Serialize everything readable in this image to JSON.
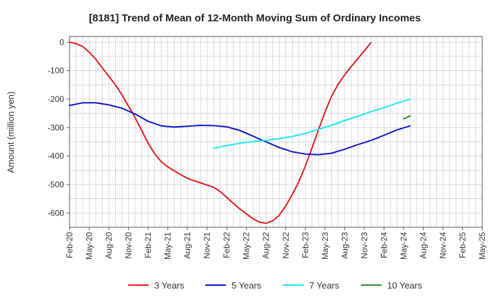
{
  "chart_data": {
    "type": "line",
    "title": "[8181]  Trend of Mean of 12-Month Moving Sum of Ordinary Incomes",
    "xlabel": "",
    "ylabel": "Amount (million yen)",
    "ylim": [
      -650,
      20
    ],
    "yticks": [
      0,
      -100,
      -200,
      -300,
      -400,
      -500,
      -600
    ],
    "ytick_labels": [
      "0",
      "-100",
      "-200",
      "-300",
      "-400",
      "-500",
      "-600"
    ],
    "x_tick_labels": [
      "Feb-20",
      "May-20",
      "Aug-20",
      "Nov-20",
      "Feb-21",
      "May-21",
      "Aug-21",
      "Nov-21",
      "Feb-22",
      "May-22",
      "Aug-22",
      "Nov-22",
      "Feb-23",
      "May-23",
      "Aug-23",
      "Nov-23",
      "Feb-24",
      "May-24",
      "Aug-24",
      "Nov-24",
      "Feb-25",
      "May-25"
    ],
    "grid": true,
    "legend_position": "bottom",
    "series": [
      {
        "name": "3 Years",
        "color": "#e31a1c",
        "points": [
          [
            0,
            0
          ],
          [
            1,
            -5
          ],
          [
            2,
            -15
          ],
          [
            3,
            -35
          ],
          [
            4,
            -60
          ],
          [
            5,
            -90
          ],
          [
            6,
            -120
          ],
          [
            7,
            -150
          ],
          [
            8,
            -185
          ],
          [
            9,
            -225
          ],
          [
            10,
            -265
          ],
          [
            11,
            -310
          ],
          [
            12,
            -355
          ],
          [
            13,
            -392
          ],
          [
            14,
            -420
          ],
          [
            15,
            -438
          ],
          [
            16,
            -452
          ],
          [
            17,
            -466
          ],
          [
            18,
            -478
          ],
          [
            19,
            -487
          ],
          [
            20,
            -494
          ],
          [
            21,
            -502
          ],
          [
            22,
            -510
          ],
          [
            23,
            -525
          ],
          [
            24,
            -545
          ],
          [
            25,
            -566
          ],
          [
            26,
            -586
          ],
          [
            27,
            -603
          ],
          [
            28,
            -620
          ],
          [
            29,
            -632
          ],
          [
            30,
            -636
          ],
          [
            31,
            -628
          ],
          [
            32,
            -608
          ],
          [
            33,
            -575
          ],
          [
            34,
            -535
          ],
          [
            35,
            -490
          ],
          [
            36,
            -435
          ],
          [
            37,
            -372
          ],
          [
            38,
            -308
          ],
          [
            39,
            -245
          ],
          [
            40,
            -190
          ],
          [
            41,
            -148
          ],
          [
            42,
            -115
          ],
          [
            43,
            -86
          ],
          [
            44,
            -58
          ],
          [
            45,
            -30
          ],
          [
            46,
            -2
          ]
        ]
      },
      {
        "name": "5 Years",
        "color": "#0a17c9",
        "points": [
          [
            0,
            -222
          ],
          [
            2,
            -213
          ],
          [
            4,
            -213
          ],
          [
            6,
            -220
          ],
          [
            8,
            -232
          ],
          [
            10,
            -252
          ],
          [
            12,
            -278
          ],
          [
            14,
            -294
          ],
          [
            16,
            -298
          ],
          [
            18,
            -295
          ],
          [
            20,
            -292
          ],
          [
            22,
            -293
          ],
          [
            24,
            -297
          ],
          [
            26,
            -310
          ],
          [
            28,
            -330
          ],
          [
            30,
            -350
          ],
          [
            32,
            -370
          ],
          [
            34,
            -385
          ],
          [
            36,
            -393
          ],
          [
            38,
            -395
          ],
          [
            40,
            -390
          ],
          [
            42,
            -376
          ],
          [
            44,
            -360
          ],
          [
            46,
            -345
          ],
          [
            48,
            -327
          ],
          [
            50,
            -308
          ],
          [
            52,
            -294
          ]
        ]
      },
      {
        "name": "7 Years",
        "color": "#1ee8ee",
        "points": [
          [
            22,
            -373
          ],
          [
            24,
            -363
          ],
          [
            26,
            -355
          ],
          [
            28,
            -349
          ],
          [
            30,
            -345
          ],
          [
            32,
            -339
          ],
          [
            34,
            -331
          ],
          [
            36,
            -320
          ],
          [
            38,
            -306
          ],
          [
            40,
            -292
          ],
          [
            42,
            -275
          ],
          [
            44,
            -260
          ],
          [
            46,
            -244
          ],
          [
            48,
            -230
          ],
          [
            50,
            -214
          ],
          [
            52,
            -200
          ]
        ]
      },
      {
        "name": "10 Years",
        "color": "#2a8c2a",
        "points": [
          [
            51,
            -269
          ],
          [
            52,
            -259
          ]
        ]
      }
    ]
  }
}
